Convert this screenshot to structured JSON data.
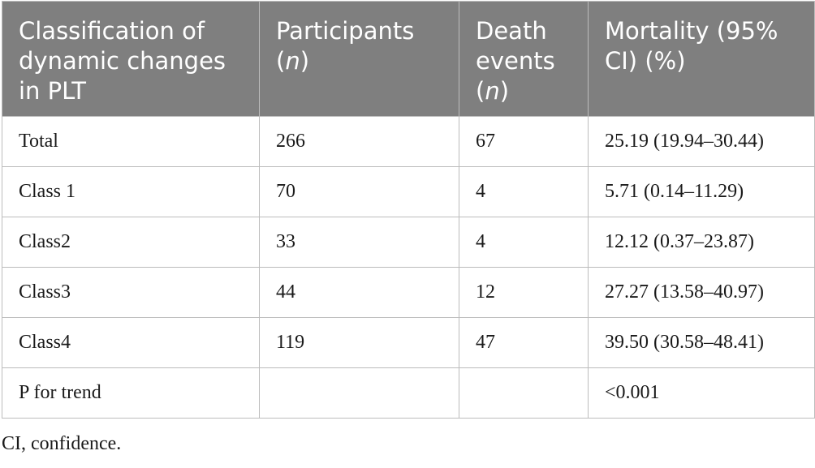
{
  "table": {
    "headers": [
      {
        "text": "Classification of dynamic changes in PLT",
        "unit": ""
      },
      {
        "text": "Participants",
        "unit": "n"
      },
      {
        "text": "Death events",
        "unit": "n"
      },
      {
        "text": "Mortality (95% CI) (%)",
        "unit": ""
      }
    ],
    "rows": [
      {
        "classification": "Total",
        "participants": "266",
        "deaths": "67",
        "mortality": "25.19 (19.94–30.44)"
      },
      {
        "classification": "Class 1",
        "participants": "70",
        "deaths": "4",
        "mortality": "5.71 (0.14–11.29)"
      },
      {
        "classification": "Class2",
        "participants": "33",
        "deaths": "4",
        "mortality": "12.12 (0.37–23.87)"
      },
      {
        "classification": "Class3",
        "participants": "44",
        "deaths": "12",
        "mortality": "27.27 (13.58–40.97)"
      },
      {
        "classification": "Class4",
        "participants": "119",
        "deaths": "47",
        "mortality": "39.50 (30.58–48.41)"
      },
      {
        "classification": "P for trend",
        "participants": "",
        "deaths": "",
        "mortality": "<0.001"
      }
    ]
  },
  "footnote": "CI, confidence."
}
